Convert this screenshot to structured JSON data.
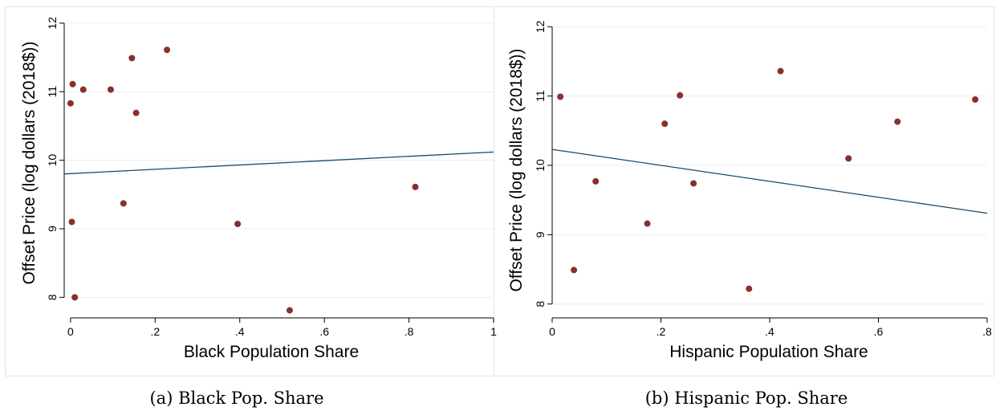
{
  "chart_data": [
    {
      "type": "scatter",
      "title": "",
      "caption": "(a) Black Pop. Share",
      "xlabel": "Black Population Share",
      "ylabel": "Offset Price (log dollars (2018$))",
      "xlim": [
        -0.015,
        1.0
      ],
      "ylim": [
        7.7,
        12.15
      ],
      "xticks": [
        0,
        0.2,
        0.4,
        0.6,
        0.8,
        1
      ],
      "xtick_labels": [
        "0",
        ".2",
        ".4",
        ".6",
        ".8",
        "1"
      ],
      "yticks": [
        8,
        9,
        10,
        11,
        12
      ],
      "ytick_labels": [
        "8",
        "9",
        "10",
        "11",
        "12"
      ],
      "grid": "horizontal",
      "marker_color": "#8b2e2e",
      "line_color": "#1a4a6b",
      "points": [
        {
          "x": 0.0,
          "y": 10.83
        },
        {
          "x": 0.005,
          "y": 11.11
        },
        {
          "x": 0.003,
          "y": 9.1
        },
        {
          "x": 0.01,
          "y": 8.0
        },
        {
          "x": 0.03,
          "y": 11.03
        },
        {
          "x": 0.095,
          "y": 11.03
        },
        {
          "x": 0.125,
          "y": 9.37
        },
        {
          "x": 0.145,
          "y": 11.49
        },
        {
          "x": 0.155,
          "y": 10.69
        },
        {
          "x": 0.228,
          "y": 11.61
        },
        {
          "x": 0.395,
          "y": 9.07
        },
        {
          "x": 0.518,
          "y": 7.81
        },
        {
          "x": 0.815,
          "y": 9.61
        }
      ],
      "fit_line": {
        "x": [
          -0.015,
          1.0
        ],
        "y": [
          9.8,
          10.12
        ]
      }
    },
    {
      "type": "scatter",
      "title": "",
      "caption": "(b) Hispanic Pop. Share",
      "xlabel": "Hispanic Population Share",
      "ylabel": "Offset Price (log dollars (2018$))",
      "xlim": [
        0,
        0.8
      ],
      "ylim": [
        7.8,
        12.2
      ],
      "xticks": [
        0,
        0.2,
        0.4,
        0.6,
        0.8
      ],
      "xtick_labels": [
        "0",
        ".2",
        ".4",
        ".6",
        ".8"
      ],
      "yticks": [
        8,
        9,
        10,
        11,
        12
      ],
      "ytick_labels": [
        "8",
        "9",
        "10",
        "11",
        "12"
      ],
      "grid": "horizontal",
      "marker_color": "#8b2e2e",
      "line_color": "#1a4a6b",
      "points": [
        {
          "x": 0.015,
          "y": 10.99
        },
        {
          "x": 0.04,
          "y": 8.49
        },
        {
          "x": 0.08,
          "y": 9.77
        },
        {
          "x": 0.175,
          "y": 9.16
        },
        {
          "x": 0.207,
          "y": 10.6
        },
        {
          "x": 0.235,
          "y": 11.01
        },
        {
          "x": 0.26,
          "y": 9.74
        },
        {
          "x": 0.362,
          "y": 8.22
        },
        {
          "x": 0.42,
          "y": 11.36
        },
        {
          "x": 0.545,
          "y": 10.1
        },
        {
          "x": 0.635,
          "y": 10.63
        },
        {
          "x": 0.778,
          "y": 10.95
        }
      ],
      "fit_line": {
        "x": [
          0,
          0.8
        ],
        "y": [
          10.23,
          9.31
        ]
      }
    }
  ]
}
